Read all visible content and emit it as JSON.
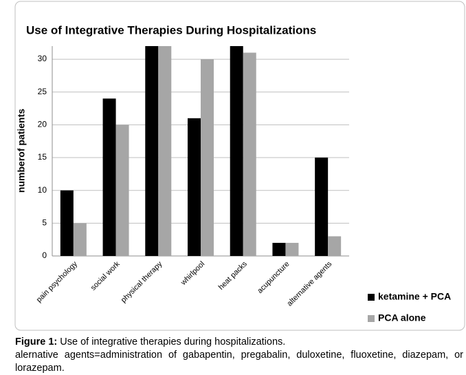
{
  "chart_data": {
    "type": "bar",
    "title": "Use of Integrative  Therapies During Hospitalizations",
    "y_label": "numberof patients",
    "categories": [
      "pain psychology",
      "social work",
      "physical therapy",
      "whirlpool",
      "heat packs",
      "acupuncture",
      "alternative agents"
    ],
    "series": [
      {
        "name": "ketamine + PCA",
        "color": "#000000",
        "values": [
          10,
          24,
          32,
          21,
          32,
          2,
          15
        ]
      },
      {
        "name": "PCA alone",
        "color": "#a6a6a6",
        "values": [
          5,
          20,
          32,
          30,
          31,
          2,
          3
        ]
      }
    ],
    "ylim": [
      0,
      32
    ],
    "yticks": [
      0,
      5,
      10,
      15,
      20,
      25,
      30
    ],
    "grid": true,
    "legend": "right"
  },
  "caption": {
    "label": "Figure 1:",
    "text": "Use of integrative therapies during hospitalizations.",
    "note": "alernative agents=administration of gabapentin, pregabalin, duloxetine, fluoxetine, diazepam, or lorazepam."
  }
}
